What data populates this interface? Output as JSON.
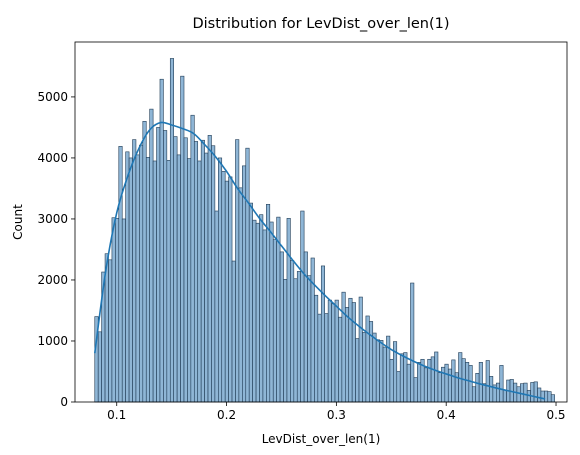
{
  "chart_data": {
    "type": "bar",
    "title": "Distribution for LevDist_over_len(1)",
    "xlabel": "LevDist_over_len(1)",
    "ylabel": "Count",
    "xlim": [
      0.062,
      0.51
    ],
    "ylim": [
      0,
      5900
    ],
    "xticks": [
      0.1,
      0.2,
      0.3,
      0.4,
      0.5
    ],
    "xtick_labels": [
      "0.1",
      "0.2",
      "0.3",
      "0.4",
      "0.5"
    ],
    "yticks": [
      0,
      1000,
      2000,
      3000,
      4000,
      5000
    ],
    "ytick_labels": [
      "0",
      "1000",
      "2000",
      "3000",
      "4000",
      "5000"
    ],
    "bar_color": "#8fb6d6",
    "bar_edge": "#1f3b55",
    "kde_color": "#1f77b4",
    "grid": false,
    "legend": false,
    "bin_start": 0.08,
    "bin_width": 0.003125,
    "counts": [
      1400,
      1150,
      2130,
      2430,
      2330,
      3020,
      3010,
      4190,
      3000,
      4100,
      4000,
      4300,
      4050,
      4210,
      4600,
      4010,
      4800,
      3950,
      4500,
      5290,
      4450,
      3960,
      5630,
      4350,
      4050,
      5340,
      4330,
      3990,
      4700,
      4270,
      3950,
      4290,
      4080,
      4370,
      4200,
      3130,
      4000,
      3780,
      3620,
      3690,
      2310,
      4300,
      3510,
      3870,
      4160,
      3260,
      2980,
      2930,
      3070,
      2820,
      3240,
      2950,
      2660,
      3030,
      2460,
      2010,
      3010,
      2320,
      2020,
      2140,
      3130,
      2460,
      2070,
      2360,
      1750,
      1440,
      2230,
      1450,
      1670,
      1610,
      1670,
      1390,
      1800,
      1550,
      1700,
      1630,
      1040,
      1720,
      1140,
      1410,
      1320,
      1130,
      1020,
      1010,
      900,
      1080,
      700,
      990,
      500,
      790,
      810,
      620,
      1950,
      400,
      650,
      700,
      560,
      700,
      740,
      820,
      480,
      570,
      620,
      540,
      690,
      480,
      810,
      710,
      650,
      600,
      250,
      470,
      650,
      300,
      680,
      420,
      280,
      310,
      600,
      200,
      360,
      370,
      310,
      250,
      300,
      310,
      190,
      320,
      330,
      230,
      180,
      180,
      170,
      120
    ],
    "kde": {
      "x": [
        0.08,
        0.09,
        0.1,
        0.11,
        0.12,
        0.13,
        0.14,
        0.15,
        0.16,
        0.17,
        0.18,
        0.19,
        0.2,
        0.21,
        0.22,
        0.23,
        0.24,
        0.25,
        0.26,
        0.27,
        0.28,
        0.29,
        0.3,
        0.31,
        0.32,
        0.33,
        0.34,
        0.35,
        0.36,
        0.37,
        0.38,
        0.39,
        0.4,
        0.41,
        0.42,
        0.43,
        0.44,
        0.45,
        0.46,
        0.47,
        0.48,
        0.49
      ],
      "y": [
        800,
        2150,
        3100,
        3700,
        4150,
        4460,
        4580,
        4540,
        4480,
        4400,
        4220,
        4020,
        3780,
        3500,
        3260,
        3010,
        2790,
        2560,
        2330,
        2110,
        1920,
        1740,
        1570,
        1400,
        1250,
        1110,
        980,
        860,
        760,
        670,
        590,
        520,
        460,
        400,
        350,
        300,
        255,
        210,
        170,
        130,
        90,
        50
      ]
    }
  }
}
